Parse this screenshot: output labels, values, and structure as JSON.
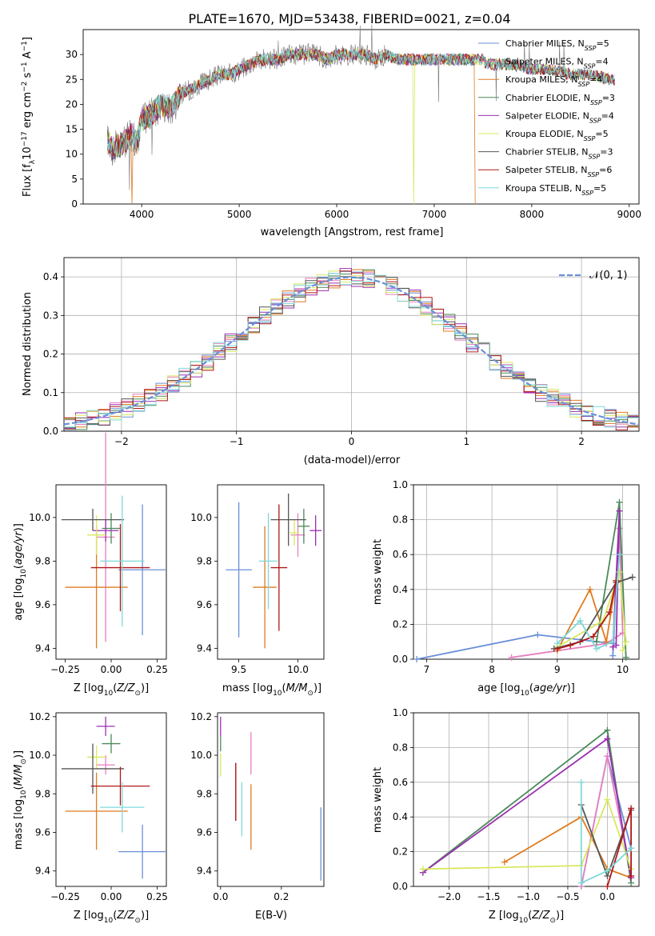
{
  "figure": {
    "title": "PLATE=1670, MJD=53438, FIBERID=0021, z=0.04"
  },
  "colors": {
    "Chabrier MILES": "#6a8fd8",
    "Salpeter MILES": "#e87fbf",
    "Kroupa MILES": "#e07b20",
    "Chabrier ELODIE": "#4a8a5a",
    "Salpeter ELODIE": "#9a2fb0",
    "Kroupa ELODIE": "#d8e860",
    "Chabrier STELIB": "#555555",
    "Salpeter STELIB": "#b01818",
    "Kroupa STELIB": "#7fd8d8"
  },
  "chart_data": [
    {
      "id": "spectrum",
      "type": "line",
      "title": "PLATE=1670, MJD=53438, FIBERID=0021, z=0.04",
      "xlabel": "wavelength [Angstrom, rest frame]",
      "ylabel": "Flux [f_λ 10^-17 erg cm^-2 s^-1 A^-1]",
      "xlim": [
        3400,
        9100
      ],
      "ylim": [
        0,
        35
      ],
      "xticks": [
        "4000",
        "5000",
        "6000",
        "7000",
        "8000",
        "9000"
      ],
      "yticks": [
        "0",
        "5",
        "10",
        "15",
        "20",
        "25",
        "30"
      ],
      "grid": false,
      "legend_position": "top-right",
      "legend": [
        {
          "name": "Chabrier MILES",
          "nssp": "5"
        },
        {
          "name": "Salpeter MILES",
          "nssp": "4"
        },
        {
          "name": "Kroupa MILES",
          "nssp": "4"
        },
        {
          "name": "Chabrier ELODIE",
          "nssp": "3"
        },
        {
          "name": "Salpeter ELODIE",
          "nssp": "4"
        },
        {
          "name": "Kroupa ELODIE",
          "nssp": "5"
        },
        {
          "name": "Chabrier STELIB",
          "nssp": "3"
        },
        {
          "name": "Salpeter STELIB",
          "nssp": "6"
        },
        {
          "name": "Kroupa STELIB",
          "nssp": "5"
        }
      ],
      "data_anchor": {
        "x": [
          3650,
          3700,
          3800,
          3900,
          3950,
          4000,
          4100,
          4200,
          4300,
          4400,
          4500,
          4600,
          4700,
          4800,
          4900,
          5000,
          5100,
          5200,
          5300,
          5400,
          5500,
          5600,
          5700,
          5800,
          5900,
          6000,
          6100,
          6200,
          6300,
          6400,
          6500,
          6600,
          6700,
          6800,
          6900,
          7000,
          7100,
          7200,
          7300,
          7400,
          7500
        ],
        "y": [
          13,
          11,
          12,
          14,
          12,
          17,
          18,
          20,
          19,
          22,
          23,
          24,
          25,
          26,
          26,
          27,
          28,
          29,
          29,
          29,
          30,
          30,
          30,
          30,
          29,
          30,
          30,
          30,
          30,
          29,
          30,
          29,
          29,
          29,
          29,
          29,
          29,
          29,
          29,
          29,
          29
        ]
      },
      "model_anchor": {
        "x": [
          7400,
          7600,
          7800,
          8000,
          8200,
          8400,
          8600,
          8800
        ],
        "y": [
          29,
          28,
          28,
          27,
          27,
          26,
          26,
          25
        ]
      },
      "model_drops": [
        {
          "series": "Kroupa MILES",
          "x": 3900
        },
        {
          "series": "Kroupa ELODIE",
          "x": 6790
        },
        {
          "series": "Kroupa MILES",
          "x": 7420
        }
      ]
    },
    {
      "id": "residuals",
      "type": "line",
      "xlabel": "(data-model)/error",
      "ylabel": "Normed distribution",
      "xlim": [
        -2.5,
        2.5
      ],
      "ylim": [
        0,
        0.45
      ],
      "xticks": [
        "−2",
        "−1",
        "0",
        "1",
        "2"
      ],
      "yticks": [
        "0.0",
        "0.1",
        "0.2",
        "0.3",
        "0.4"
      ],
      "grid": true,
      "legend_position": "top-right",
      "legend": [
        "𝒩(0, 1)"
      ],
      "bins": 50
    },
    {
      "id": "age-vs-Z",
      "type": "scatter",
      "xlabel": "Z [log10(Z/Z⊙)]",
      "ylabel": "age [log10(age/yr)]",
      "xlim": [
        -0.3,
        0.3
      ],
      "ylim": [
        9.35,
        10.15
      ],
      "xticks": [
        "−0.25",
        "0.00",
        "0.25"
      ],
      "yticks": [
        "9.4",
        "9.6",
        "9.8",
        "10.0"
      ],
      "points": [
        {
          "series": "Chabrier MILES",
          "x": 0.17,
          "y": 9.76,
          "xerr": 0.13,
          "yerr": 0.3
        },
        {
          "series": "Salpeter MILES",
          "x": -0.03,
          "y": 9.91,
          "xerr": 0.05,
          "yerr": 0.48
        },
        {
          "series": "Kroupa MILES",
          "x": -0.08,
          "y": 9.68,
          "xerr": 0.17,
          "yerr": 0.28
        },
        {
          "series": "Chabrier ELODIE",
          "x": 0.0,
          "y": 9.95,
          "xerr": 0.05,
          "yerr": 0.07
        },
        {
          "series": "Salpeter ELODIE",
          "x": -0.03,
          "y": 9.94,
          "xerr": 0.07,
          "yerr": 0.05
        },
        {
          "series": "Kroupa ELODIE",
          "x": -0.08,
          "y": 9.92,
          "xerr": 0.05,
          "yerr": 0.09
        },
        {
          "series": "Chabrier STELIB",
          "x": -0.1,
          "y": 9.99,
          "xerr": 0.17,
          "yerr": 0.05
        },
        {
          "series": "Salpeter STELIB",
          "x": 0.05,
          "y": 9.77,
          "xerr": 0.16,
          "yerr": 0.2
        },
        {
          "series": "Kroupa STELIB",
          "x": 0.06,
          "y": 9.8,
          "xerr": 0.12,
          "yerr": 0.3
        }
      ]
    },
    {
      "id": "age-vs-mass",
      "type": "scatter",
      "xlabel": "mass [log10(M/M⊙)]",
      "ylabel": "",
      "xlim": [
        9.32,
        10.22
      ],
      "ylim": [
        9.35,
        10.15
      ],
      "xticks": [
        "9.5",
        "10.0"
      ],
      "yticks": [
        "9.4",
        "9.6",
        "9.8",
        "10.0"
      ],
      "points": [
        {
          "series": "Chabrier MILES",
          "x": 9.5,
          "y": 9.76,
          "xerr": 0.11,
          "yerr": 0.31
        },
        {
          "series": "Salpeter MILES",
          "x": 10.0,
          "y": 9.92,
          "xerr": 0.06,
          "yerr": 0.1
        },
        {
          "series": "Kroupa MILES",
          "x": 9.72,
          "y": 9.68,
          "xerr": 0.1,
          "yerr": 0.28
        },
        {
          "series": "Chabrier ELODIE",
          "x": 10.05,
          "y": 9.96,
          "xerr": 0.05,
          "yerr": 0.08
        },
        {
          "series": "Salpeter ELODIE",
          "x": 10.15,
          "y": 9.94,
          "xerr": 0.05,
          "yerr": 0.07
        },
        {
          "series": "Kroupa ELODIE",
          "x": 9.97,
          "y": 9.93,
          "xerr": 0.04,
          "yerr": 0.06
        },
        {
          "series": "Chabrier STELIB",
          "x": 9.92,
          "y": 9.99,
          "xerr": 0.15,
          "yerr": 0.12
        },
        {
          "series": "Salpeter STELIB",
          "x": 9.84,
          "y": 9.77,
          "xerr": 0.07,
          "yerr": 0.29
        },
        {
          "series": "Kroupa STELIB",
          "x": 9.75,
          "y": 9.8,
          "xerr": 0.08,
          "yerr": 0.22
        }
      ]
    },
    {
      "id": "massweight-vs-age",
      "type": "line",
      "xlabel": "age [log10(age/yr)]",
      "ylabel": "mass weight",
      "xlim": [
        6.8,
        10.25
      ],
      "ylim": [
        0,
        1.0
      ],
      "xticks": [
        "7",
        "8",
        "9",
        "10"
      ],
      "yticks": [
        "0.0",
        "0.2",
        "0.4",
        "0.6",
        "0.8",
        "1.0"
      ],
      "grid": true,
      "series": [
        {
          "name": "Chabrier MILES",
          "x": [
            6.85,
            8.7,
            9.85,
            9.95,
            9.85
          ],
          "y": [
            0.0,
            0.14,
            0.09,
            0.75,
            0.02
          ]
        },
        {
          "name": "Salpeter MILES",
          "x": [
            8.3,
            9.75,
            10.0,
            9.95
          ],
          "y": [
            0.01,
            0.09,
            0.15,
            0.75
          ]
        },
        {
          "name": "Kroupa MILES",
          "x": [
            9.0,
            9.5,
            9.75,
            9.9
          ],
          "y": [
            0.05,
            0.4,
            0.1,
            0.45
          ]
        },
        {
          "name": "Chabrier ELODIE",
          "x": [
            9.6,
            9.95,
            10.05
          ],
          "y": [
            0.1,
            0.9,
            0.01
          ]
        },
        {
          "name": "Salpeter ELODIE",
          "x": [
            9.85,
            9.95,
            9.9
          ],
          "y": [
            0.07,
            0.85,
            0.08
          ]
        },
        {
          "name": "Kroupa ELODIE",
          "x": [
            9.0,
            9.7,
            9.95,
            10.05,
            10.0
          ],
          "y": [
            0.07,
            0.22,
            0.5,
            0.1,
            0.05
          ]
        },
        {
          "name": "Chabrier STELIB",
          "x": [
            8.95,
            9.35,
            9.9,
            10.15
          ],
          "y": [
            0.06,
            0.1,
            0.44,
            0.47
          ]
        },
        {
          "name": "Salpeter STELIB",
          "x": [
            9.0,
            9.2,
            9.55,
            9.8,
            9.9
          ],
          "y": [
            0.06,
            0.08,
            0.13,
            0.27,
            0.45
          ]
        },
        {
          "name": "Kroupa STELIB",
          "x": [
            9.0,
            9.35,
            9.6,
            9.85,
            9.95
          ],
          "y": [
            0.09,
            0.22,
            0.06,
            0.1,
            0.6
          ]
        }
      ]
    },
    {
      "id": "mass-vs-Z",
      "type": "scatter",
      "xlabel": "Z [log10(Z/Z⊙)]",
      "ylabel": "mass [log10(M/M⊙)]",
      "xlim": [
        -0.3,
        0.3
      ],
      "ylim": [
        9.32,
        10.22
      ],
      "xticks": [
        "−0.25",
        "0.00",
        "0.25"
      ],
      "yticks": [
        "9.4",
        "9.6",
        "9.8",
        "10.0",
        "10.2"
      ],
      "points": [
        {
          "series": "Chabrier MILES",
          "x": 0.17,
          "y": 9.5,
          "xerr": 0.13,
          "yerr": 0.14
        },
        {
          "series": "Salpeter MILES",
          "x": -0.03,
          "y": 9.95,
          "xerr": 0.05,
          "yerr": 0.05
        },
        {
          "series": "Kroupa MILES",
          "x": -0.08,
          "y": 9.71,
          "xerr": 0.17,
          "yerr": 0.2
        },
        {
          "series": "Chabrier ELODIE",
          "x": 0.0,
          "y": 10.06,
          "xerr": 0.05,
          "yerr": 0.05
        },
        {
          "series": "Salpeter ELODIE",
          "x": -0.03,
          "y": 10.15,
          "xerr": 0.05,
          "yerr": 0.05
        },
        {
          "series": "Kroupa ELODIE",
          "x": -0.08,
          "y": 9.99,
          "xerr": 0.05,
          "yerr": 0.06
        },
        {
          "series": "Chabrier STELIB",
          "x": -0.1,
          "y": 9.93,
          "xerr": 0.17,
          "yerr": 0.13
        },
        {
          "series": "Salpeter STELIB",
          "x": 0.05,
          "y": 9.84,
          "xerr": 0.16,
          "yerr": 0.1
        },
        {
          "series": "Kroupa STELIB",
          "x": 0.06,
          "y": 9.73,
          "xerr": 0.12,
          "yerr": 0.13
        }
      ]
    },
    {
      "id": "mass-vs-EBV",
      "type": "scatter",
      "xlabel": "E(B-V)",
      "ylabel": "",
      "xlim": [
        -0.01,
        0.34
      ],
      "ylim": [
        9.32,
        10.22
      ],
      "xticks": [
        "0.0",
        "0.2"
      ],
      "yticks": [
        "9.4",
        "9.6",
        "9.8",
        "10.0",
        "10.2"
      ],
      "points": [
        {
          "series": "Chabrier MILES",
          "x": 0.33,
          "y": 9.54,
          "xerr": 0.0,
          "yerr": 0.19
        },
        {
          "series": "Salpeter MILES",
          "x": 0.1,
          "y": 10.01,
          "xerr": 0.0,
          "yerr": 0.11
        },
        {
          "series": "Kroupa MILES",
          "x": 0.1,
          "y": 9.68,
          "xerr": 0.0,
          "yerr": 0.17
        },
        {
          "series": "Chabrier ELODIE",
          "x": 0.0,
          "y": 10.06,
          "xerr": 0.0,
          "yerr": 0.04
        },
        {
          "series": "Salpeter ELODIE",
          "x": 0.0,
          "y": 10.15,
          "xerr": 0.0,
          "yerr": 0.05
        },
        {
          "series": "Kroupa ELODIE",
          "x": 0.0,
          "y": 9.95,
          "xerr": 0.0,
          "yerr": 0.06
        },
        {
          "series": "Chabrier STELIB",
          "x": 0.05,
          "y": 9.81,
          "xerr": 0.0,
          "yerr": 0.15
        },
        {
          "series": "Salpeter STELIB",
          "x": 0.05,
          "y": 9.81,
          "xerr": 0.0,
          "yerr": 0.15
        },
        {
          "series": "Kroupa STELIB",
          "x": 0.07,
          "y": 9.72,
          "xerr": 0.0,
          "yerr": 0.14
        }
      ]
    },
    {
      "id": "massweight-vs-Z",
      "type": "line",
      "xlabel": "Z [log10(Z/Z⊙)]",
      "ylabel": "mass weight",
      "xlim": [
        -2.45,
        0.4
      ],
      "ylim": [
        0,
        1.0
      ],
      "xticks": [
        "−2.0",
        "−1.5",
        "−1.0",
        "−0.5",
        "0.0"
      ],
      "yticks": [
        "0.0",
        "0.2",
        "0.4",
        "0.6",
        "0.8",
        "1.0"
      ],
      "grid": true,
      "series": [
        {
          "name": "Chabrier MILES",
          "x": [
            -0.33,
            0.0,
            0.3
          ],
          "y": [
            0.0,
            0.75,
            0.22
          ]
        },
        {
          "name": "Salpeter MILES",
          "x": [
            -0.33,
            0.0,
            0.3
          ],
          "y": [
            0.0,
            0.75,
            0.06
          ]
        },
        {
          "name": "Kroupa MILES",
          "x": [
            -1.3,
            -0.33,
            0.0,
            0.3
          ],
          "y": [
            0.14,
            0.4,
            0.1,
            0.05
          ]
        },
        {
          "name": "Chabrier ELODIE",
          "x": [
            -2.33,
            0.0,
            0.3
          ],
          "y": [
            0.08,
            0.9,
            0.02
          ]
        },
        {
          "name": "Salpeter ELODIE",
          "x": [
            -2.33,
            0.0,
            0.3
          ],
          "y": [
            0.08,
            0.85,
            0.05
          ]
        },
        {
          "name": "Kroupa ELODIE",
          "x": [
            -2.33,
            -0.33,
            0.0,
            0.3
          ],
          "y": [
            0.1,
            0.12,
            0.5,
            0.1
          ]
        },
        {
          "name": "Chabrier STELIB",
          "x": [
            -0.33,
            0.0,
            0.3
          ],
          "y": [
            0.47,
            0.06,
            0.44
          ]
        },
        {
          "name": "Salpeter STELIB",
          "x": [
            0.0,
            0.3,
            0.3
          ],
          "y": [
            0.0,
            0.45,
            0.06
          ]
        },
        {
          "name": "Kroupa STELIB",
          "x": [
            -0.33,
            -0.33,
            0.0,
            0.3
          ],
          "y": [
            0.6,
            0.02,
            0.09,
            0.22
          ]
        }
      ]
    }
  ]
}
